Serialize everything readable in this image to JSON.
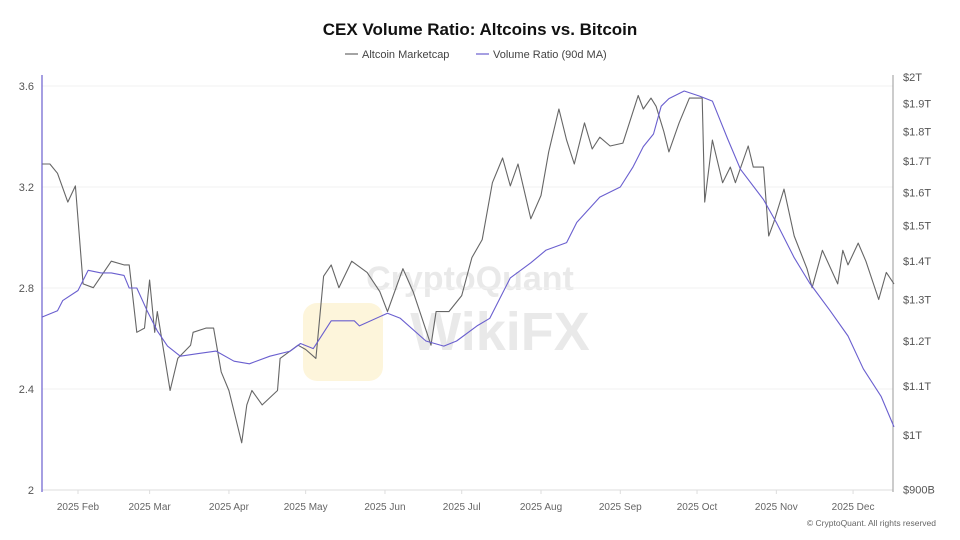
{
  "chart_data": {
    "type": "line",
    "title": "CEX Volume Ratio: Altcoins vs. Bitcoin",
    "legend_placement": "top-center",
    "grid": true,
    "xlim": [
      "2025-01-18",
      "2025-12-17"
    ],
    "x_ticks": [
      {
        "date": "2025-02-01",
        "label": "2025 Feb"
      },
      {
        "date": "2025-03-01",
        "label": "2025 Mar"
      },
      {
        "date": "2025-04-01",
        "label": "2025 Apr"
      },
      {
        "date": "2025-05-01",
        "label": "2025 May"
      },
      {
        "date": "2025-06-01",
        "label": "2025 Jun"
      },
      {
        "date": "2025-07-01",
        "label": "2025 Jul"
      },
      {
        "date": "2025-08-01",
        "label": "2025 Aug"
      },
      {
        "date": "2025-09-01",
        "label": "2025 Sep"
      },
      {
        "date": "2025-10-01",
        "label": "2025 Oct"
      },
      {
        "date": "2025-11-01",
        "label": "2025 Nov"
      },
      {
        "date": "2025-12-01",
        "label": "2025 Dec"
      }
    ],
    "y_left": {
      "scale": "linear",
      "range": [
        2,
        3.6
      ],
      "ticks": [
        {
          "v": 2,
          "label": "2"
        },
        {
          "v": 2.4,
          "label": "2.4"
        },
        {
          "v": 2.8,
          "label": "2.8"
        },
        {
          "v": 3.2,
          "label": "3.2"
        },
        {
          "v": 3.6,
          "label": "3.6"
        }
      ]
    },
    "y_right": {
      "scale": "log",
      "unit": "trillion USD",
      "range": [
        0.9,
        2.0
      ],
      "ticks": [
        {
          "v": 2.0,
          "label": "$2T"
        },
        {
          "v": 1.9,
          "label": "$1.9T"
        },
        {
          "v": 1.8,
          "label": "$1.8T"
        },
        {
          "v": 1.7,
          "label": "$1.7T"
        },
        {
          "v": 1.6,
          "label": "$1.6T"
        },
        {
          "v": 1.5,
          "label": "$1.5T"
        },
        {
          "v": 1.4,
          "label": "$1.4T"
        },
        {
          "v": 1.3,
          "label": "$1.3T"
        },
        {
          "v": 1.2,
          "label": "$1.2T"
        },
        {
          "v": 1.1,
          "label": "$1.1T"
        },
        {
          "v": 1.0,
          "label": "$1T"
        },
        {
          "v": 0.9,
          "label": "$900B"
        }
      ]
    },
    "series": [
      {
        "name": "Altcoin Marketcap",
        "axis": "right",
        "color": "#666666",
        "points": [
          [
            "2025-01-18",
            1.69
          ],
          [
            "2025-01-21",
            1.69
          ],
          [
            "2025-01-24",
            1.66
          ],
          [
            "2025-01-28",
            1.57
          ],
          [
            "2025-01-31",
            1.62
          ],
          [
            "2025-02-03",
            1.34
          ],
          [
            "2025-02-07",
            1.33
          ],
          [
            "2025-02-14",
            1.4
          ],
          [
            "2025-02-19",
            1.39
          ],
          [
            "2025-02-21",
            1.39
          ],
          [
            "2025-02-24",
            1.22
          ],
          [
            "2025-02-27",
            1.23
          ],
          [
            "2025-03-01",
            1.35
          ],
          [
            "2025-03-03",
            1.22
          ],
          [
            "2025-03-04",
            1.27
          ],
          [
            "2025-03-09",
            1.09
          ],
          [
            "2025-03-12",
            1.16
          ],
          [
            "2025-03-17",
            1.19
          ],
          [
            "2025-03-18",
            1.22
          ],
          [
            "2025-03-23",
            1.23
          ],
          [
            "2025-03-26",
            1.23
          ],
          [
            "2025-03-29",
            1.13
          ],
          [
            "2025-04-01",
            1.09
          ],
          [
            "2025-04-06",
            0.985
          ],
          [
            "2025-04-08",
            1.06
          ],
          [
            "2025-04-10",
            1.09
          ],
          [
            "2025-04-14",
            1.06
          ],
          [
            "2025-04-20",
            1.09
          ],
          [
            "2025-04-21",
            1.16
          ],
          [
            "2025-04-28",
            1.19
          ],
          [
            "2025-05-01",
            1.18
          ],
          [
            "2025-05-05",
            1.16
          ],
          [
            "2025-05-08",
            1.36
          ],
          [
            "2025-05-11",
            1.39
          ],
          [
            "2025-05-14",
            1.33
          ],
          [
            "2025-05-19",
            1.4
          ],
          [
            "2025-05-25",
            1.37
          ],
          [
            "2025-05-30",
            1.32
          ],
          [
            "2025-06-02",
            1.27
          ],
          [
            "2025-06-08",
            1.38
          ],
          [
            "2025-06-12",
            1.32
          ],
          [
            "2025-06-19",
            1.19
          ],
          [
            "2025-06-21",
            1.27
          ],
          [
            "2025-06-26",
            1.27
          ],
          [
            "2025-07-01",
            1.31
          ],
          [
            "2025-07-05",
            1.41
          ],
          [
            "2025-07-09",
            1.46
          ],
          [
            "2025-07-13",
            1.63
          ],
          [
            "2025-07-17",
            1.71
          ],
          [
            "2025-07-20",
            1.62
          ],
          [
            "2025-07-23",
            1.69
          ],
          [
            "2025-07-28",
            1.52
          ],
          [
            "2025-08-01",
            1.59
          ],
          [
            "2025-08-04",
            1.73
          ],
          [
            "2025-08-08",
            1.88
          ],
          [
            "2025-08-11",
            1.77
          ],
          [
            "2025-08-14",
            1.69
          ],
          [
            "2025-08-18",
            1.83
          ],
          [
            "2025-08-21",
            1.74
          ],
          [
            "2025-08-24",
            1.78
          ],
          [
            "2025-08-28",
            1.75
          ],
          [
            "2025-09-02",
            1.76
          ],
          [
            "2025-09-08",
            1.93
          ],
          [
            "2025-09-10",
            1.88
          ],
          [
            "2025-09-13",
            1.92
          ],
          [
            "2025-09-15",
            1.89
          ],
          [
            "2025-09-18",
            1.8
          ],
          [
            "2025-09-20",
            1.73
          ],
          [
            "2025-09-24",
            1.83
          ],
          [
            "2025-09-28",
            1.92
          ],
          [
            "2025-10-03",
            1.92
          ],
          [
            "2025-10-04",
            1.57
          ],
          [
            "2025-10-07",
            1.77
          ],
          [
            "2025-10-11",
            1.63
          ],
          [
            "2025-10-14",
            1.68
          ],
          [
            "2025-10-16",
            1.63
          ],
          [
            "2025-10-21",
            1.75
          ],
          [
            "2025-10-23",
            1.68
          ],
          [
            "2025-10-27",
            1.68
          ],
          [
            "2025-10-29",
            1.47
          ],
          [
            "2025-10-31",
            1.51
          ],
          [
            "2025-11-04",
            1.61
          ],
          [
            "2025-11-08",
            1.47
          ],
          [
            "2025-11-13",
            1.38
          ],
          [
            "2025-11-15",
            1.33
          ],
          [
            "2025-11-19",
            1.43
          ],
          [
            "2025-11-25",
            1.34
          ],
          [
            "2025-11-27",
            1.43
          ],
          [
            "2025-11-29",
            1.39
          ],
          [
            "2025-12-03",
            1.45
          ],
          [
            "2025-12-06",
            1.4
          ],
          [
            "2025-12-11",
            1.3
          ],
          [
            "2025-12-14",
            1.37
          ],
          [
            "2025-12-17",
            1.34
          ]
        ]
      },
      {
        "name": "Volume Ratio (90d MA)",
        "axis": "left",
        "color": "#6a5fcf",
        "points": [
          [
            "2025-01-18",
            2.685
          ],
          [
            "2025-01-24",
            2.71
          ],
          [
            "2025-01-26",
            2.75
          ],
          [
            "2025-02-01",
            2.79
          ],
          [
            "2025-02-05",
            2.87
          ],
          [
            "2025-02-10",
            2.86
          ],
          [
            "2025-02-14",
            2.86
          ],
          [
            "2025-02-19",
            2.85
          ],
          [
            "2025-02-21",
            2.8
          ],
          [
            "2025-02-24",
            2.8
          ],
          [
            "2025-02-28",
            2.71
          ],
          [
            "2025-03-04",
            2.63
          ],
          [
            "2025-03-08",
            2.57
          ],
          [
            "2025-03-13",
            2.53
          ],
          [
            "2025-03-20",
            2.54
          ],
          [
            "2025-03-27",
            2.55
          ],
          [
            "2025-04-03",
            2.51
          ],
          [
            "2025-04-09",
            2.5
          ],
          [
            "2025-04-17",
            2.53
          ],
          [
            "2025-04-25",
            2.55
          ],
          [
            "2025-04-29",
            2.58
          ],
          [
            "2025-05-04",
            2.56
          ],
          [
            "2025-05-11",
            2.67
          ],
          [
            "2025-05-20",
            2.67
          ],
          [
            "2025-05-22",
            2.65
          ],
          [
            "2025-06-02",
            2.7
          ],
          [
            "2025-06-07",
            2.68
          ],
          [
            "2025-06-17",
            2.59
          ],
          [
            "2025-06-24",
            2.57
          ],
          [
            "2025-06-29",
            2.59
          ],
          [
            "2025-07-07",
            2.65
          ],
          [
            "2025-07-12",
            2.68
          ],
          [
            "2025-07-20",
            2.84
          ],
          [
            "2025-07-28",
            2.9
          ],
          [
            "2025-08-03",
            2.95
          ],
          [
            "2025-08-11",
            2.98
          ],
          [
            "2025-08-15",
            3.06
          ],
          [
            "2025-08-24",
            3.16
          ],
          [
            "2025-09-01",
            3.2
          ],
          [
            "2025-09-06",
            3.28
          ],
          [
            "2025-09-10",
            3.36
          ],
          [
            "2025-09-14",
            3.41
          ],
          [
            "2025-09-17",
            3.52
          ],
          [
            "2025-09-20",
            3.55
          ],
          [
            "2025-09-26",
            3.58
          ],
          [
            "2025-10-02",
            3.56
          ],
          [
            "2025-10-07",
            3.54
          ],
          [
            "2025-10-13",
            3.39
          ],
          [
            "2025-10-18",
            3.27
          ],
          [
            "2025-10-27",
            3.15
          ],
          [
            "2025-11-01",
            3.06
          ],
          [
            "2025-11-08",
            2.92
          ],
          [
            "2025-11-14",
            2.82
          ],
          [
            "2025-11-22",
            2.71
          ],
          [
            "2025-11-29",
            2.61
          ],
          [
            "2025-12-05",
            2.48
          ],
          [
            "2025-12-12",
            2.37
          ],
          [
            "2025-12-17",
            2.25
          ]
        ]
      }
    ]
  },
  "watermarks": {
    "cryptoquant": "CryptoQuant",
    "wikifx": "WikiFX"
  },
  "footer": {
    "copyright": "© CryptoQuant. All rights reserved"
  }
}
